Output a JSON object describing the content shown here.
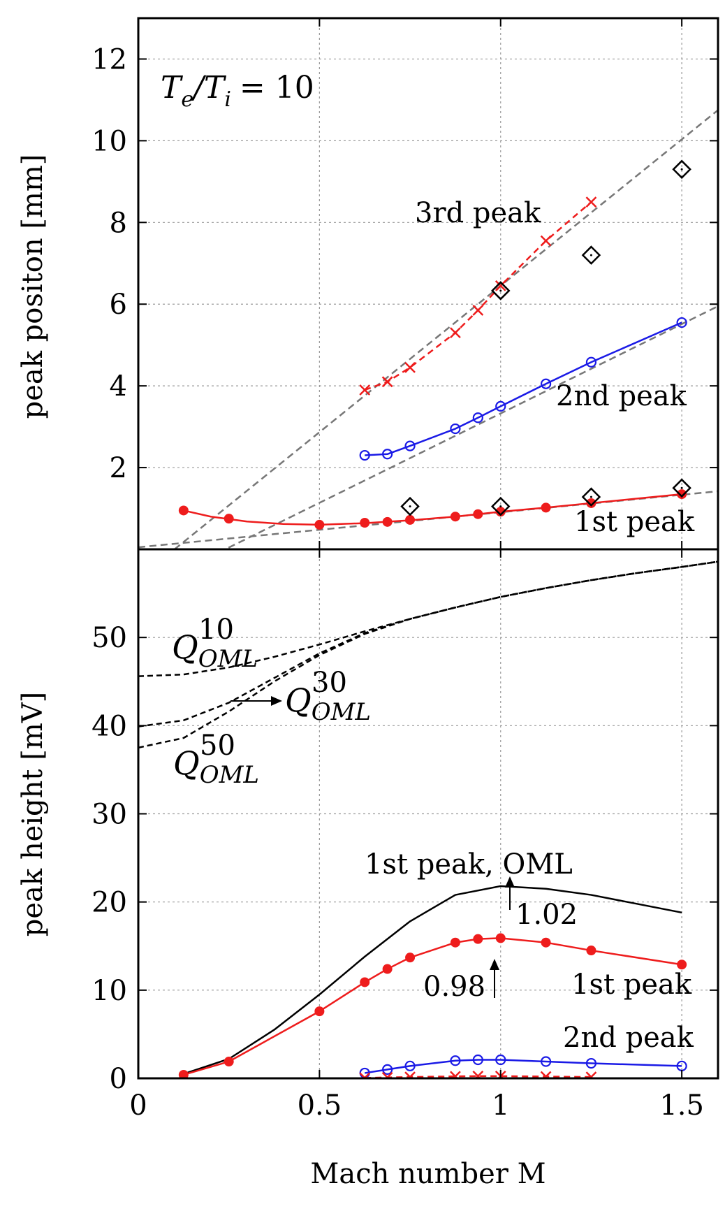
{
  "chart_data": [
    {
      "type": "line",
      "panel": "top",
      "xlabel": "",
      "ylabel": "peak positon [mm]",
      "xlim": [
        0,
        1.6
      ],
      "ylim": [
        0,
        13
      ],
      "xticks": [
        0,
        0.5,
        1,
        1.5
      ],
      "yticks": [
        2,
        4,
        6,
        8,
        10,
        12
      ],
      "ytick_labels": [
        "2",
        "4",
        "6",
        "8",
        "10",
        "12"
      ],
      "grid": true,
      "annotation_main": "Te/Ti = 10",
      "annotation_T1": "T",
      "annotation_e": "e",
      "annotation_slash": "/",
      "annotation_T2": "T",
      "annotation_i": "i",
      "annotation_eq": "= 10",
      "series": [
        {
          "label": "1st peak",
          "color": "#ee1c1c",
          "marker": "filled-circle",
          "line": "solid",
          "x": [
            0.125,
            0.25,
            0.5,
            0.625,
            0.6875,
            0.75,
            0.875,
            0.9375,
            1.0,
            1.125,
            1.25,
            1.5
          ],
          "y": [
            0.95,
            0.75,
            0.6,
            0.65,
            0.67,
            0.72,
            0.8,
            0.86,
            0.92,
            1.02,
            1.13,
            1.35
          ],
          "curve_x": [
            0.125,
            0.2,
            0.3,
            0.4,
            0.5,
            0.625,
            0.75,
            0.875,
            1.0,
            1.125,
            1.25,
            1.375,
            1.5
          ],
          "curve_y": [
            0.95,
            0.8,
            0.68,
            0.62,
            0.6,
            0.64,
            0.71,
            0.8,
            0.92,
            1.02,
            1.13,
            1.24,
            1.35
          ]
        },
        {
          "label": "2nd peak",
          "color": "#1a1ae6",
          "marker": "open-circle",
          "line": "solid",
          "x": [
            0.625,
            0.6875,
            0.75,
            0.875,
            0.9375,
            1.0,
            1.125,
            1.25,
            1.5
          ],
          "y": [
            2.3,
            2.33,
            2.53,
            2.95,
            3.22,
            3.5,
            4.05,
            4.58,
            5.55
          ]
        },
        {
          "label": "3rd peak",
          "color": "#ee1c1c",
          "marker": "cross",
          "line": "dashed",
          "x": [
            0.625,
            0.6875,
            0.75,
            0.875,
            0.9375,
            1.0,
            1.125,
            1.25
          ],
          "y": [
            3.9,
            4.1,
            4.45,
            5.3,
            5.85,
            6.45,
            7.55,
            8.5
          ]
        },
        {
          "label": "",
          "color": "#000000",
          "marker": "diamond",
          "line": "none",
          "x": [
            0.75,
            1.0,
            1.0,
            1.25,
            1.25,
            1.5,
            1.5
          ],
          "y": [
            1.05,
            1.05,
            6.33,
            1.28,
            7.2,
            1.5,
            9.3
          ]
        }
      ],
      "fit_lines": [
        {
          "color": "#777777",
          "x": [
            0,
            1.6
          ],
          "y": [
            0.05,
            1.42
          ]
        },
        {
          "color": "#777777",
          "x": [
            0,
            1.6
          ],
          "y": [
            -1.05,
            5.95
          ]
        },
        {
          "color": "#777777",
          "x": [
            0.1,
            1.6
          ],
          "y": [
            0.0,
            10.75
          ]
        }
      ],
      "labels": {
        "first": "1st peak",
        "second": "2nd peak",
        "third": "3rd peak"
      }
    },
    {
      "type": "line",
      "panel": "bottom",
      "xlabel": "Mach number M",
      "ylabel": "peak height [mV]",
      "xlim": [
        0,
        1.6
      ],
      "ylim": [
        0,
        60
      ],
      "xticks": [
        0,
        0.5,
        1,
        1.5
      ],
      "xtick_labels": [
        "0",
        "0.5",
        "1",
        "1.5"
      ],
      "yticks": [
        0,
        10,
        20,
        30,
        40,
        50
      ],
      "ytick_labels": [
        "0",
        "10",
        "20",
        "30",
        "40",
        "50"
      ],
      "grid": true,
      "series": [
        {
          "label": "1st peak, OML",
          "color": "#000000",
          "marker": "none",
          "line": "solid",
          "x": [
            0.125,
            0.25,
            0.375,
            0.5,
            0.625,
            0.75,
            0.875,
            1.0,
            1.125,
            1.25,
            1.375,
            1.5
          ],
          "y": [
            0.5,
            2.2,
            5.5,
            9.5,
            13.8,
            17.8,
            20.8,
            21.8,
            21.5,
            20.8,
            19.8,
            18.8
          ]
        },
        {
          "label": "1st peak",
          "color": "#ee1c1c",
          "marker": "filled-circle",
          "line": "solid",
          "x": [
            0.125,
            0.25,
            0.5,
            0.625,
            0.6875,
            0.75,
            0.875,
            0.9375,
            1.0,
            1.125,
            1.25,
            1.5
          ],
          "y": [
            0.4,
            1.9,
            7.6,
            10.9,
            12.4,
            13.7,
            15.4,
            15.8,
            15.9,
            15.4,
            14.5,
            12.9
          ]
        },
        {
          "label": "2nd peak",
          "color": "#1a1ae6",
          "marker": "open-circle",
          "line": "solid",
          "x": [
            0.625,
            0.6875,
            0.75,
            0.875,
            0.9375,
            1.0,
            1.125,
            1.25,
            1.5
          ],
          "y": [
            0.6,
            1.0,
            1.4,
            2.0,
            2.1,
            2.1,
            1.9,
            1.7,
            1.4
          ]
        },
        {
          "label": "3rd peak",
          "color": "#ee1c1c",
          "marker": "cross",
          "line": "dashed",
          "x": [
            0.625,
            0.6875,
            0.75,
            0.875,
            0.9375,
            1.0,
            1.125,
            1.25
          ],
          "y": [
            0.05,
            0.1,
            0.15,
            0.22,
            0.25,
            0.25,
            0.2,
            0.15
          ]
        }
      ],
      "oml_curves": [
        {
          "label": "Q_OML^10",
          "color": "#000000",
          "line": "dashed",
          "x": [
            0,
            0.125,
            0.25,
            0.375,
            0.5,
            0.625,
            0.75,
            0.875,
            1.0,
            1.125,
            1.25,
            1.375,
            1.5,
            1.6
          ],
          "y": [
            45.6,
            45.8,
            46.6,
            47.8,
            49.2,
            50.7,
            52.1,
            53.4,
            54.6,
            55.6,
            56.5,
            57.3,
            58.0,
            58.6
          ]
        },
        {
          "label": "Q_OML^30",
          "color": "#000000",
          "line": "dashed",
          "x": [
            0,
            0.125,
            0.25,
            0.375,
            0.5,
            0.625,
            0.75,
            0.875,
            1.0,
            1.125,
            1.25,
            1.375,
            1.5,
            1.6
          ],
          "y": [
            39.9,
            40.6,
            42.6,
            45.4,
            48.2,
            50.5,
            52.1,
            53.4,
            54.6,
            55.6,
            56.5,
            57.3,
            58.0,
            58.6
          ]
        },
        {
          "label": "Q_OML^50",
          "color": "#000000",
          "line": "dashed",
          "x": [
            0,
            0.125,
            0.25,
            0.375,
            0.5,
            0.625,
            0.75,
            0.875,
            1.0,
            1.125,
            1.25,
            1.375,
            1.5,
            1.6
          ],
          "y": [
            37.5,
            38.6,
            41.6,
            45.0,
            48.0,
            50.4,
            52.1,
            53.4,
            54.6,
            55.6,
            56.5,
            57.3,
            58.0,
            58.6
          ]
        }
      ],
      "labels": {
        "oml": "1st peak, OML",
        "first": "1st peak",
        "second": "2nd peak",
        "v102": "1.02",
        "v098": "0.98",
        "q": "Q",
        "oml_sub": "OML",
        "sup10": "10",
        "sup30": "30",
        "sup50": "50"
      }
    }
  ]
}
